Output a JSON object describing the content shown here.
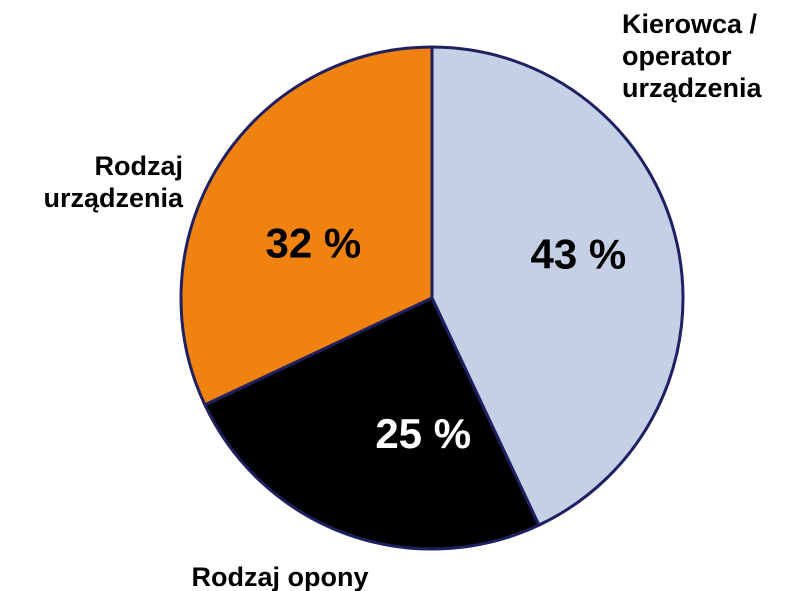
{
  "chart_data": {
    "type": "pie",
    "categories": [
      "Kierowca / operator urządzenia",
      "Rodzaj opony",
      "Rodzaj urządzenia"
    ],
    "values": [
      43,
      25,
      32
    ],
    "value_labels": [
      "43 %",
      "25 %",
      "32 %"
    ],
    "colors": [
      "#c5cfe6",
      "#000000",
      "#f0820f"
    ],
    "edge_color": "#1f2060"
  }
}
